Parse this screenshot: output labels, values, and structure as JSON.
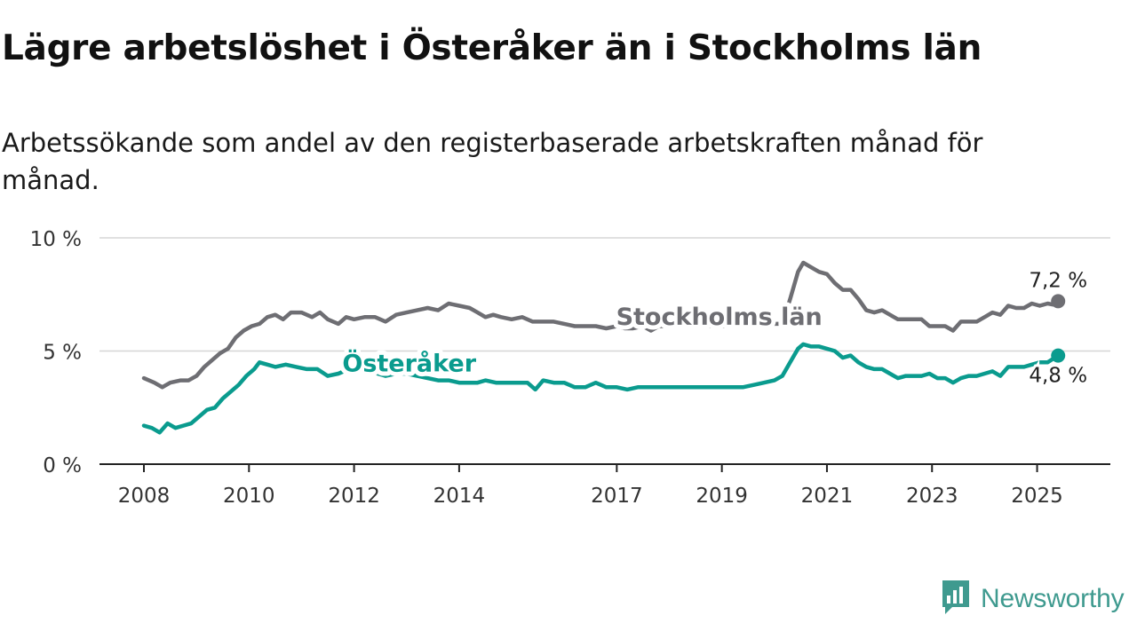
{
  "title": "Lägre arbetslöshet i Österåker än i Stockholms län",
  "subtitle": "Arbetssökande som andel av den registerbaserade arbetskraften månad för månad.",
  "brand": {
    "name": "Newsworthy",
    "icon": "newsworthy-chart-bubble-icon",
    "color": "#3f9a8f"
  },
  "chart_data": {
    "type": "line",
    "y_ticks": [
      {
        "value": 0,
        "label": "0 %"
      },
      {
        "value": 5,
        "label": "5 %"
      },
      {
        "value": 10,
        "label": "10 %"
      }
    ],
    "ylim": [
      0,
      10
    ],
    "x_range": [
      2008.0,
      2026.3
    ],
    "x_ticks": [
      {
        "value": 2008,
        "label": "2008"
      },
      {
        "value": 2010,
        "label": "2010"
      },
      {
        "value": 2012,
        "label": "2012"
      },
      {
        "value": 2014,
        "label": "2014"
      },
      {
        "value": 2017,
        "label": "2017"
      },
      {
        "value": 2019,
        "label": "2019"
      },
      {
        "value": 2021,
        "label": "2021"
      },
      {
        "value": 2023,
        "label": "2023"
      },
      {
        "value": 2025,
        "label": "2025"
      }
    ],
    "grid": true,
    "series": [
      {
        "name": "Stockholms län",
        "color": "#6e6e73",
        "end_label": "7,2 %",
        "points": [
          [
            2008.0,
            3.8
          ],
          [
            2008.2,
            3.6
          ],
          [
            2008.35,
            3.4
          ],
          [
            2008.5,
            3.6
          ],
          [
            2008.7,
            3.7
          ],
          [
            2008.85,
            3.7
          ],
          [
            2009.0,
            3.9
          ],
          [
            2009.15,
            4.3
          ],
          [
            2009.3,
            4.6
          ],
          [
            2009.45,
            4.9
          ],
          [
            2009.6,
            5.1
          ],
          [
            2009.75,
            5.6
          ],
          [
            2009.9,
            5.9
          ],
          [
            2010.05,
            6.1
          ],
          [
            2010.2,
            6.2
          ],
          [
            2010.35,
            6.5
          ],
          [
            2010.5,
            6.6
          ],
          [
            2010.65,
            6.4
          ],
          [
            2010.8,
            6.7
          ],
          [
            2011.0,
            6.7
          ],
          [
            2011.2,
            6.5
          ],
          [
            2011.35,
            6.7
          ],
          [
            2011.5,
            6.4
          ],
          [
            2011.7,
            6.2
          ],
          [
            2011.85,
            6.5
          ],
          [
            2012.0,
            6.4
          ],
          [
            2012.2,
            6.5
          ],
          [
            2012.4,
            6.5
          ],
          [
            2012.6,
            6.3
          ],
          [
            2012.8,
            6.6
          ],
          [
            2013.0,
            6.7
          ],
          [
            2013.2,
            6.8
          ],
          [
            2013.4,
            6.9
          ],
          [
            2013.6,
            6.8
          ],
          [
            2013.8,
            7.1
          ],
          [
            2014.0,
            7.0
          ],
          [
            2014.2,
            6.9
          ],
          [
            2014.35,
            6.7
          ],
          [
            2014.5,
            6.5
          ],
          [
            2014.65,
            6.6
          ],
          [
            2014.8,
            6.5
          ],
          [
            2015.0,
            6.4
          ],
          [
            2015.2,
            6.5
          ],
          [
            2015.4,
            6.3
          ],
          [
            2015.6,
            6.3
          ],
          [
            2015.8,
            6.3
          ],
          [
            2016.0,
            6.2
          ],
          [
            2016.2,
            6.1
          ],
          [
            2016.4,
            6.1
          ],
          [
            2016.6,
            6.1
          ],
          [
            2016.8,
            6.0
          ],
          [
            2017.0,
            6.1
          ],
          [
            2017.15,
            6.0
          ],
          [
            2017.3,
            6.0
          ],
          [
            2017.5,
            6.1
          ],
          [
            2017.65,
            5.9
          ],
          [
            2017.8,
            6.1
          ],
          [
            2018.0,
            6.1
          ],
          [
            2018.3,
            6.2
          ],
          [
            2018.6,
            6.1
          ],
          [
            2018.9,
            6.1
          ],
          [
            2019.2,
            6.1
          ],
          [
            2019.5,
            6.1
          ],
          [
            2019.8,
            6.1
          ],
          [
            2020.0,
            6.2
          ],
          [
            2020.15,
            6.2
          ],
          [
            2020.3,
            7.3
          ],
          [
            2020.45,
            8.5
          ],
          [
            2020.55,
            8.9
          ],
          [
            2020.7,
            8.7
          ],
          [
            2020.85,
            8.5
          ],
          [
            2021.0,
            8.4
          ],
          [
            2021.15,
            8.0
          ],
          [
            2021.3,
            7.7
          ],
          [
            2021.45,
            7.7
          ],
          [
            2021.6,
            7.3
          ],
          [
            2021.75,
            6.8
          ],
          [
            2021.9,
            6.7
          ],
          [
            2022.05,
            6.8
          ],
          [
            2022.2,
            6.6
          ],
          [
            2022.35,
            6.4
          ],
          [
            2022.5,
            6.4
          ],
          [
            2022.65,
            6.4
          ],
          [
            2022.8,
            6.4
          ],
          [
            2022.95,
            6.1
          ],
          [
            2023.1,
            6.1
          ],
          [
            2023.25,
            6.1
          ],
          [
            2023.4,
            5.9
          ],
          [
            2023.55,
            6.3
          ],
          [
            2023.7,
            6.3
          ],
          [
            2023.85,
            6.3
          ],
          [
            2024.0,
            6.5
          ],
          [
            2024.15,
            6.7
          ],
          [
            2024.3,
            6.6
          ],
          [
            2024.45,
            7.0
          ],
          [
            2024.6,
            6.9
          ],
          [
            2024.75,
            6.9
          ],
          [
            2024.9,
            7.1
          ],
          [
            2025.05,
            7.0
          ],
          [
            2025.2,
            7.1
          ],
          [
            2025.3,
            7.05
          ],
          [
            2025.4,
            7.2
          ]
        ]
      },
      {
        "name": "Österåker",
        "color": "#0a9b8e",
        "end_label": "4,8 %",
        "points": [
          [
            2008.0,
            1.7
          ],
          [
            2008.15,
            1.6
          ],
          [
            2008.3,
            1.4
          ],
          [
            2008.45,
            1.8
          ],
          [
            2008.6,
            1.6
          ],
          [
            2008.75,
            1.7
          ],
          [
            2008.9,
            1.8
          ],
          [
            2009.05,
            2.1
          ],
          [
            2009.2,
            2.4
          ],
          [
            2009.35,
            2.5
          ],
          [
            2009.5,
            2.9
          ],
          [
            2009.65,
            3.2
          ],
          [
            2009.8,
            3.5
          ],
          [
            2009.95,
            3.9
          ],
          [
            2010.1,
            4.2
          ],
          [
            2010.2,
            4.5
          ],
          [
            2010.35,
            4.4
          ],
          [
            2010.5,
            4.3
          ],
          [
            2010.7,
            4.4
          ],
          [
            2010.9,
            4.3
          ],
          [
            2011.1,
            4.2
          ],
          [
            2011.3,
            4.2
          ],
          [
            2011.5,
            3.9
          ],
          [
            2011.7,
            4.0
          ],
          [
            2011.9,
            4.2
          ],
          [
            2012.1,
            4.3
          ],
          [
            2012.3,
            4.2
          ],
          [
            2012.45,
            4.0
          ],
          [
            2012.6,
            3.9
          ],
          [
            2012.8,
            4.0
          ],
          [
            2013.0,
            4.0
          ],
          [
            2013.2,
            3.9
          ],
          [
            2013.4,
            3.8
          ],
          [
            2013.6,
            3.7
          ],
          [
            2013.8,
            3.7
          ],
          [
            2014.0,
            3.6
          ],
          [
            2014.2,
            3.6
          ],
          [
            2014.35,
            3.6
          ],
          [
            2014.5,
            3.7
          ],
          [
            2014.7,
            3.6
          ],
          [
            2014.9,
            3.6
          ],
          [
            2015.1,
            3.6
          ],
          [
            2015.3,
            3.6
          ],
          [
            2015.45,
            3.3
          ],
          [
            2015.6,
            3.7
          ],
          [
            2015.8,
            3.6
          ],
          [
            2016.0,
            3.6
          ],
          [
            2016.2,
            3.4
          ],
          [
            2016.4,
            3.4
          ],
          [
            2016.6,
            3.6
          ],
          [
            2016.8,
            3.4
          ],
          [
            2017.0,
            3.4
          ],
          [
            2017.2,
            3.3
          ],
          [
            2017.4,
            3.4
          ],
          [
            2017.6,
            3.4
          ],
          [
            2017.8,
            3.4
          ],
          [
            2018.0,
            3.4
          ],
          [
            2018.2,
            3.4
          ],
          [
            2018.4,
            3.4
          ],
          [
            2018.6,
            3.4
          ],
          [
            2018.8,
            3.4
          ],
          [
            2019.0,
            3.4
          ],
          [
            2019.2,
            3.4
          ],
          [
            2019.4,
            3.4
          ],
          [
            2019.6,
            3.5
          ],
          [
            2019.8,
            3.6
          ],
          [
            2020.0,
            3.7
          ],
          [
            2020.15,
            3.9
          ],
          [
            2020.3,
            4.5
          ],
          [
            2020.45,
            5.1
          ],
          [
            2020.55,
            5.3
          ],
          [
            2020.7,
            5.2
          ],
          [
            2020.85,
            5.2
          ],
          [
            2021.0,
            5.1
          ],
          [
            2021.15,
            5.0
          ],
          [
            2021.3,
            4.7
          ],
          [
            2021.45,
            4.8
          ],
          [
            2021.6,
            4.5
          ],
          [
            2021.75,
            4.3
          ],
          [
            2021.9,
            4.2
          ],
          [
            2022.05,
            4.2
          ],
          [
            2022.2,
            4.0
          ],
          [
            2022.35,
            3.8
          ],
          [
            2022.5,
            3.9
          ],
          [
            2022.65,
            3.9
          ],
          [
            2022.8,
            3.9
          ],
          [
            2022.95,
            4.0
          ],
          [
            2023.1,
            3.8
          ],
          [
            2023.25,
            3.8
          ],
          [
            2023.4,
            3.6
          ],
          [
            2023.55,
            3.8
          ],
          [
            2023.7,
            3.9
          ],
          [
            2023.85,
            3.9
          ],
          [
            2024.0,
            4.0
          ],
          [
            2024.15,
            4.1
          ],
          [
            2024.3,
            3.9
          ],
          [
            2024.45,
            4.3
          ],
          [
            2024.6,
            4.3
          ],
          [
            2024.75,
            4.3
          ],
          [
            2024.9,
            4.4
          ],
          [
            2025.05,
            4.5
          ],
          [
            2025.2,
            4.5
          ],
          [
            2025.4,
            4.8
          ]
        ]
      }
    ],
    "series_labels": [
      {
        "text": "Stockholms län",
        "x": 2018.95,
        "y": 6.15,
        "color": "#6e6e73"
      },
      {
        "text": "Österåker",
        "x": 2013.05,
        "y": 4.1,
        "color": "#0a9b8e"
      }
    ]
  }
}
